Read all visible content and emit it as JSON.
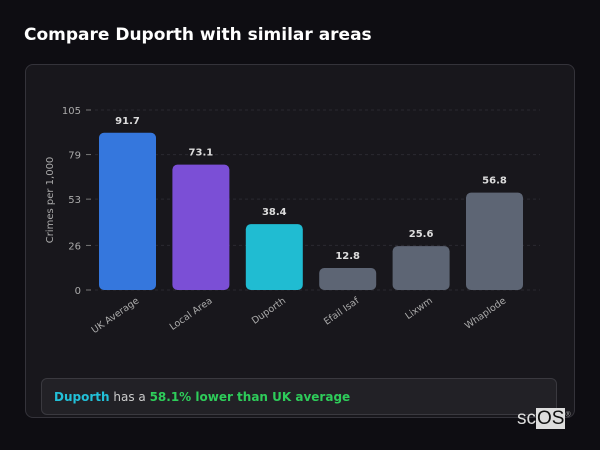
{
  "title": "Compare Duporth with similar areas",
  "chart_data": {
    "type": "bar",
    "title": "",
    "xlabel": "",
    "ylabel": "Crimes per 1,000",
    "ylim": [
      0,
      105
    ],
    "yticks": [
      0,
      26,
      53,
      79,
      105
    ],
    "grid": true,
    "categories": [
      "UK Average",
      "Local Area",
      "Duporth",
      "Efail Isaf",
      "Lixwm",
      "Whaplode"
    ],
    "values": [
      91.7,
      73.1,
      38.4,
      12.8,
      25.6,
      56.8
    ],
    "colors": [
      "#3577dd",
      "#7b4fd6",
      "#20bcd2",
      "#5d6574",
      "#5d6574",
      "#5d6574"
    ]
  },
  "summary": {
    "area": "Duporth",
    "middle": " has a ",
    "comparison": "58.1% lower than UK average"
  },
  "logo": {
    "text_a": "sc",
    "text_b": "OS",
    "mark": "®"
  }
}
